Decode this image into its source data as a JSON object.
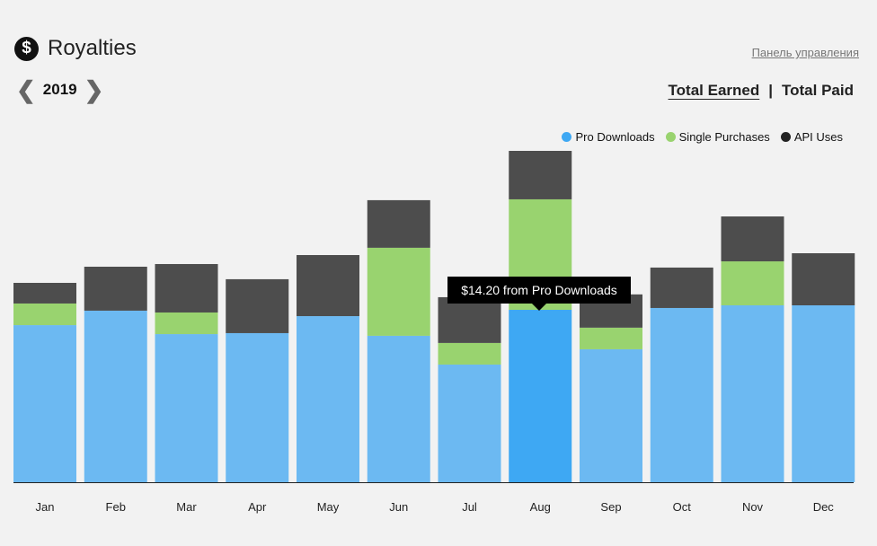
{
  "header": {
    "title": "Royalties",
    "icon": "dollar-icon",
    "dashboard_link": "Панель управления",
    "year": "2019",
    "tabs": [
      "Total Earned",
      "Total Paid"
    ],
    "separator": "|"
  },
  "tooltip": "$14.20 from Pro Downloads",
  "chart_data": {
    "type": "bar",
    "stacked": true,
    "categories": [
      "Jan",
      "Feb",
      "Mar",
      "Apr",
      "May",
      "Jun",
      "Jul",
      "Aug",
      "Sep",
      "Oct",
      "Nov",
      "Dec"
    ],
    "series": [
      {
        "name": "Pro Downloads",
        "color": "#6cb9f2",
        "values": [
          12.94,
          14.13,
          12.2,
          12.28,
          13.68,
          12.06,
          9.69,
          14.2,
          10.95,
          14.35,
          14.57,
          14.57
        ]
      },
      {
        "name": "Single Purchases",
        "color": "#99d36f",
        "values": [
          1.78,
          0.0,
          1.78,
          0,
          0.0,
          7.25,
          1.78,
          9.1,
          1.78,
          0,
          3.62,
          0
        ]
      },
      {
        "name": "API Uses",
        "color": "#4d4d4d",
        "values": [
          1.7,
          3.62,
          3.99,
          4.44,
          5.03,
          3.92,
          3.77,
          3.99,
          2.74,
          3.33,
          3.7,
          4.29
        ]
      }
    ],
    "highlight": {
      "category": "Aug",
      "series": "Pro Downloads",
      "color": "#3ea8f3"
    },
    "legend_position": "top-right",
    "grid": false,
    "ylim": [
      0,
      27.5
    ]
  }
}
